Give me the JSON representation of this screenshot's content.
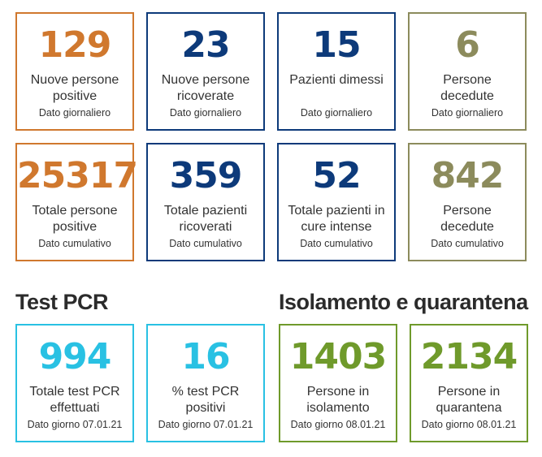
{
  "colors": {
    "orange": "#d0782e",
    "navy": "#0d3a7a",
    "olive": "#8c8b5c",
    "cyan": "#29c1e3",
    "green": "#6f9a2b"
  },
  "daily": [
    {
      "value": "129",
      "label": [
        "Nuove persone",
        "positive"
      ],
      "sub": "Dato giornaliero"
    },
    {
      "value": "23",
      "label": [
        "Nuove persone",
        "ricoverate"
      ],
      "sub": "Dato giornaliero"
    },
    {
      "value": "15",
      "label": [
        "Pazienti dimessi",
        ""
      ],
      "sub": "Dato giornaliero"
    },
    {
      "value": "6",
      "label": [
        "Persone",
        "decedute"
      ],
      "sub": "Dato giornaliero"
    }
  ],
  "cumulative": [
    {
      "value": "25317",
      "label": [
        "Totale persone",
        "positive"
      ],
      "sub": "Dato cumulativo"
    },
    {
      "value": "359",
      "label": [
        "Totale pazienti",
        "ricoverati"
      ],
      "sub": "Dato cumulativo"
    },
    {
      "value": "52",
      "label": [
        "Totale pazienti in",
        "cure intense"
      ],
      "sub": "Dato cumulativo"
    },
    {
      "value": "842",
      "label": [
        "Persone",
        "decedute"
      ],
      "sub": "Dato cumulativo"
    }
  ],
  "test_pcr": {
    "title": "Test PCR",
    "cards": [
      {
        "value": "994",
        "label": [
          "Totale test PCR",
          "effettuati"
        ],
        "sub": "Dato giorno 07.01.21"
      },
      {
        "value": "16",
        "label": [
          "% test PCR",
          "positivi"
        ],
        "sub": "Dato giorno 07.01.21"
      }
    ]
  },
  "isolation": {
    "title": "Isolamento e quarantena",
    "cards": [
      {
        "value": "1403",
        "label": [
          "Persone in",
          "isolamento"
        ],
        "sub": "Dato giorno 08.01.21"
      },
      {
        "value": "2134",
        "label": [
          "Persone in",
          "quarantena"
        ],
        "sub": "Dato giorno 08.01.21"
      }
    ]
  }
}
